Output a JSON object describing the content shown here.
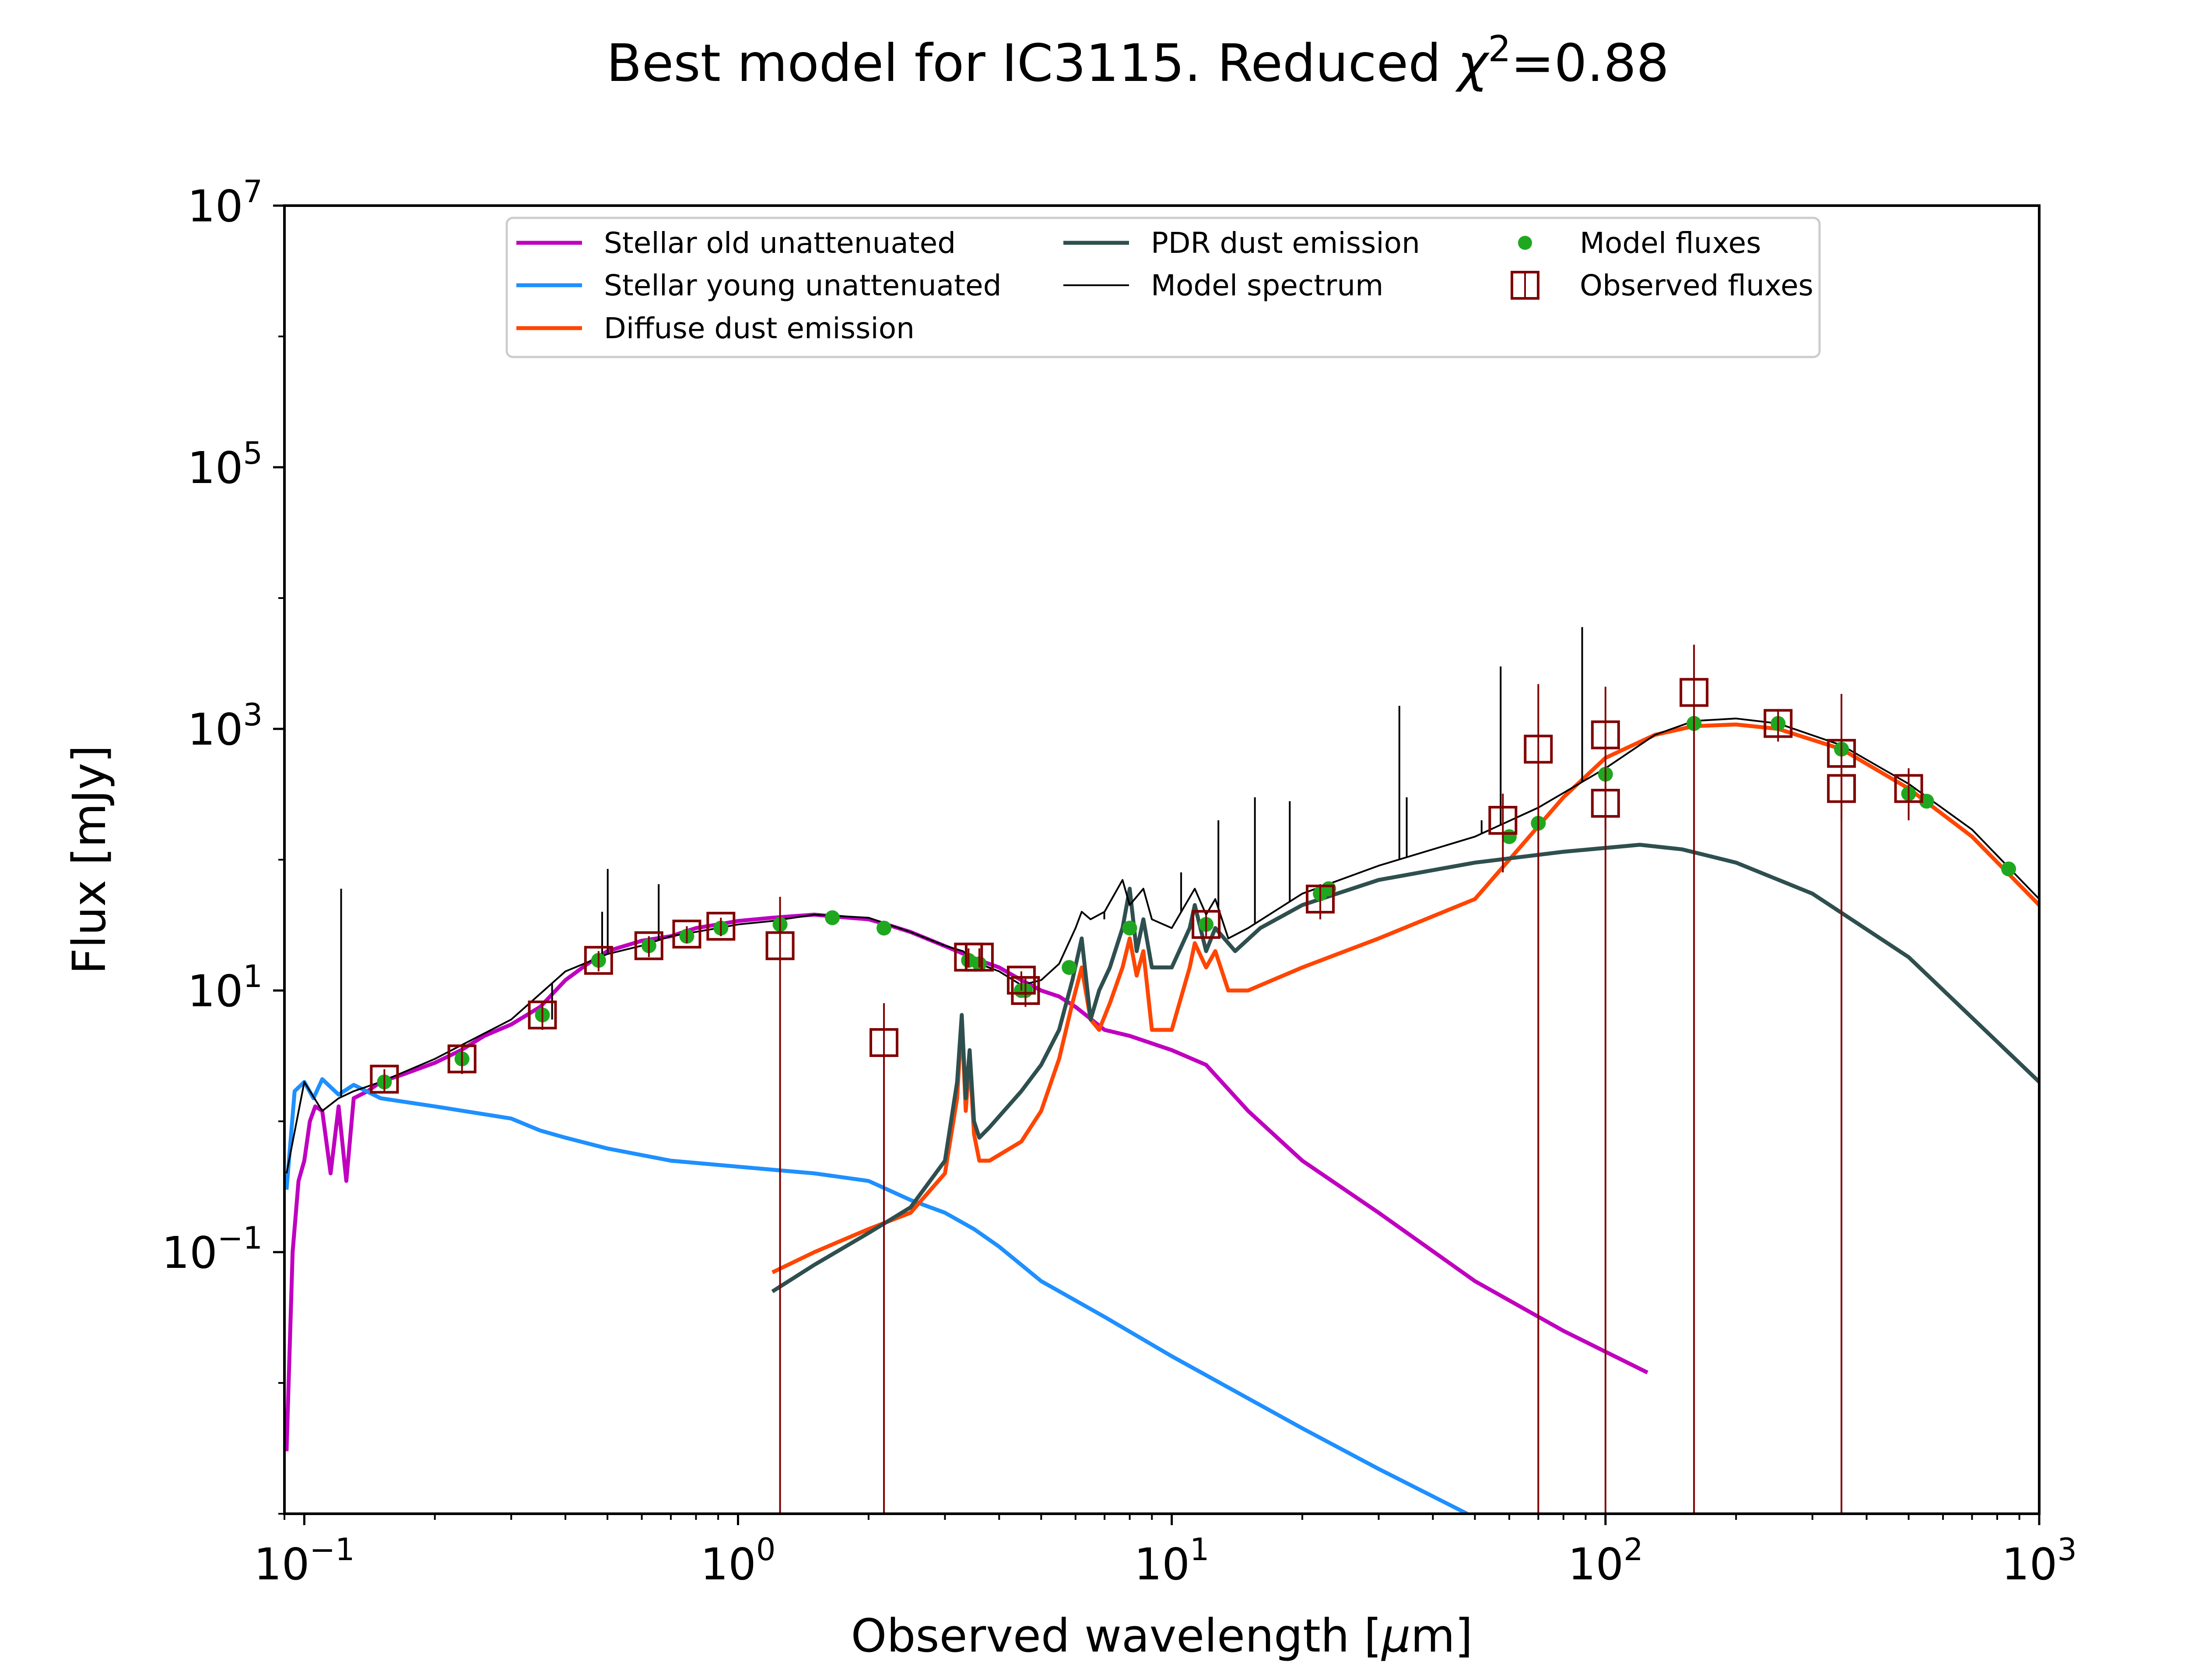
{
  "chart_data": {
    "type": "line",
    "title": "Best model for IC3115. Reduced χ²=0.88",
    "title_main": "Best model for IC3115. Reduced ",
    "title_chi": "χ",
    "title_sup": "2",
    "title_tail": "=0.88",
    "xlabel": "Observed wavelength [μm]",
    "xlabel_main": "Observed wavelength [",
    "xlabel_mu": "μ",
    "xlabel_tail": "m]",
    "ylabel": "Flux [mJy]",
    "x_scale": "log",
    "y_scale": "log",
    "xlim": [
      0.09,
      1000
    ],
    "ylim": [
      0.001,
      10000000
    ],
    "x_ticks": [
      {
        "value": 0.1,
        "base": "10",
        "exp": "−1"
      },
      {
        "value": 1,
        "base": "10",
        "exp": "0"
      },
      {
        "value": 10,
        "base": "10",
        "exp": "1"
      },
      {
        "value": 100,
        "base": "10",
        "exp": "2"
      },
      {
        "value": 1000,
        "base": "10",
        "exp": "3"
      }
    ],
    "y_ticks": [
      {
        "value": 0.1,
        "base": "10",
        "exp": "−1"
      },
      {
        "value": 10,
        "base": "10",
        "exp": "1"
      },
      {
        "value": 1000,
        "base": "10",
        "exp": "3"
      },
      {
        "value": 100000,
        "base": "10",
        "exp": "5"
      },
      {
        "value": 10000000,
        "base": "10",
        "exp": "7"
      }
    ],
    "grid": false,
    "legend_position": "top",
    "series": [
      {
        "name": "Stellar old unattenuated",
        "color": "#BF00BF",
        "kind": "line",
        "x": [
          0.091,
          0.094,
          0.097,
          0.1,
          0.103,
          0.106,
          0.11,
          0.115,
          0.12,
          0.125,
          0.13,
          0.14,
          0.15,
          0.17,
          0.2,
          0.23,
          0.26,
          0.3,
          0.35,
          0.4,
          0.45,
          0.5,
          0.6,
          0.7,
          0.8,
          0.9,
          1.0,
          1.2,
          1.5,
          1.8,
          2.0,
          2.2,
          2.5,
          2.8,
          3.2,
          3.6,
          4.0,
          4.5,
          5.0,
          5.5,
          6.0,
          7.0,
          8.0,
          10,
          12,
          15,
          20,
          30,
          50,
          80,
          125
        ],
        "y": [
          0.003,
          0.1,
          0.35,
          0.5,
          1.0,
          1.3,
          1.2,
          0.4,
          1.3,
          0.35,
          1.5,
          1.7,
          2.0,
          2.3,
          2.8,
          3.5,
          4.5,
          5.5,
          7.5,
          12,
          16,
          20,
          24,
          26,
          30,
          32,
          34,
          36,
          38,
          36,
          35,
          32,
          28,
          24,
          20,
          17,
          15,
          12,
          10,
          9,
          7.5,
          5.0,
          4.5,
          3.5,
          2.7,
          1.2,
          0.5,
          0.2,
          0.06,
          0.025,
          0.012
        ]
      },
      {
        "name": "Stellar young unattenuated",
        "color": "#1E90FF",
        "kind": "line",
        "x": [
          0.091,
          0.095,
          0.1,
          0.105,
          0.11,
          0.12,
          0.13,
          0.15,
          0.2,
          0.3,
          0.35,
          0.4,
          0.5,
          0.7,
          1.0,
          1.5,
          2.0,
          2.5,
          3.0,
          3.5,
          4.0,
          5.0,
          7.0,
          10,
          20,
          30,
          48
        ],
        "y": [
          0.3,
          1.7,
          2.0,
          1.5,
          2.1,
          1.6,
          1.9,
          1.5,
          1.3,
          1.05,
          0.85,
          0.75,
          0.62,
          0.5,
          0.45,
          0.4,
          0.35,
          0.25,
          0.2,
          0.15,
          0.11,
          0.06,
          0.032,
          0.016,
          0.0045,
          0.0022,
          0.001
        ]
      },
      {
        "name": "Diffuse dust emission",
        "color": "#FF4500",
        "kind": "line",
        "x": [
          1.2,
          1.5,
          2.0,
          2.5,
          3.0,
          3.2,
          3.28,
          3.35,
          3.42,
          3.5,
          3.6,
          3.8,
          4.5,
          5.0,
          5.5,
          5.9,
          6.2,
          6.5,
          6.8,
          7.2,
          7.7,
          8.0,
          8.3,
          8.6,
          9.0,
          10,
          11.0,
          11.3,
          12.0,
          12.6,
          13.5,
          15,
          20,
          30,
          50,
          60,
          80,
          100,
          130,
          160,
          200,
          250,
          350,
          500,
          700,
          1000
        ],
        "y": [
          0.07,
          0.1,
          0.15,
          0.2,
          0.4,
          1.5,
          6.0,
          1.2,
          3.0,
          0.8,
          0.5,
          0.5,
          0.7,
          1.2,
          3.0,
          8.0,
          15,
          6.0,
          5.0,
          8.0,
          15,
          25,
          13,
          20,
          5.0,
          5.0,
          15,
          23,
          15,
          20,
          10,
          10,
          15,
          25,
          50,
          100,
          300,
          600,
          900,
          1050,
          1080,
          1000,
          700,
          350,
          150,
          45
        ]
      },
      {
        "name": "PDR dust emission",
        "color": "#2F4F4F",
        "kind": "line",
        "x": [
          1.2,
          1.5,
          2.0,
          2.5,
          3.0,
          3.2,
          3.28,
          3.35,
          3.42,
          3.5,
          3.6,
          3.8,
          4.5,
          5.0,
          5.5,
          5.9,
          6.2,
          6.5,
          6.8,
          7.2,
          7.7,
          8.0,
          8.3,
          8.6,
          9.0,
          10,
          11.0,
          11.3,
          12.0,
          12.6,
          14,
          16,
          20,
          30,
          50,
          80,
          120,
          150,
          200,
          300,
          500,
          1000
        ],
        "y": [
          0.05,
          0.08,
          0.14,
          0.22,
          0.5,
          2.0,
          6.5,
          1.5,
          3.5,
          1.0,
          0.75,
          0.9,
          1.7,
          2.7,
          5.0,
          12,
          25,
          6.0,
          10,
          15,
          30,
          60,
          20,
          35,
          15,
          15,
          30,
          45,
          20,
          30,
          20,
          30,
          45,
          70,
          95,
          115,
          130,
          120,
          95,
          55,
          18,
          2.0
        ]
      },
      {
        "name": "Model spectrum",
        "color": "#000000",
        "kind": "line",
        "width": "thin",
        "x": [
          0.091,
          0.1,
          0.11,
          0.12,
          0.13,
          0.15,
          0.2,
          0.3,
          0.4,
          0.5,
          0.6,
          0.7,
          0.9,
          1.0,
          1.2,
          1.5,
          2.0,
          2.5,
          3.0,
          3.3,
          3.6,
          4.0,
          4.5,
          5.0,
          5.5,
          6.0,
          6.2,
          6.5,
          7.0,
          7.7,
          8.0,
          8.6,
          9.0,
          10,
          11.3,
          12,
          12.6,
          13.5,
          15,
          20,
          30,
          50,
          70,
          100,
          130,
          160,
          200,
          250,
          350,
          500,
          700,
          1000
        ],
        "y": [
          0.4,
          2.0,
          1.2,
          1.5,
          1.7,
          2.0,
          3.0,
          6.0,
          14,
          19,
          22,
          26,
          30,
          32,
          34,
          38,
          36,
          28,
          22,
          20,
          16,
          14,
          11,
          12,
          16,
          30,
          40,
          35,
          40,
          70,
          45,
          60,
          35,
          30,
          60,
          38,
          50,
          25,
          30,
          55,
          90,
          150,
          250,
          500,
          900,
          1150,
          1200,
          1100,
          750,
          380,
          170,
          50
        ]
      },
      {
        "name": "",
        "color": "#000000",
        "kind": "emission-lines",
        "x": [
          0.1216,
          0.3727,
          0.4861,
          0.5007,
          0.6563,
          6.99,
          10.51,
          12.81,
          15.55,
          18.71,
          33.48,
          34.81,
          51.81,
          57.32,
          88.36
        ],
        "y": [
          60,
          6.0,
          40,
          85,
          65,
          35,
          80,
          200,
          300,
          280,
          1500,
          300,
          200,
          3000,
          6000
        ]
      },
      {
        "name": "Model fluxes",
        "color": "#1FA81F",
        "kind": "markers",
        "marker": "circle",
        "x": [
          0.153,
          0.231,
          0.354,
          0.477,
          0.623,
          0.762,
          0.913,
          1.25,
          1.65,
          2.17,
          3.4,
          3.6,
          4.5,
          4.6,
          5.8,
          8.0,
          12,
          22,
          23,
          60,
          70,
          100,
          160,
          160,
          250,
          350,
          500,
          550,
          850
        ],
        "y": [
          2.0,
          3.0,
          6.5,
          17,
          22,
          26,
          30,
          32,
          36,
          30,
          17,
          16,
          10,
          10,
          15,
          30,
          32,
          55,
          60,
          150,
          190,
          450,
          1100,
          1100,
          1100,
          700,
          320,
          280,
          85
        ]
      },
      {
        "name": "Observed fluxes",
        "color": "#800000",
        "kind": "markers",
        "marker": "open-square",
        "x": [
          0.153,
          0.231,
          0.354,
          0.477,
          0.623,
          0.762,
          0.913,
          1.25,
          2.17,
          3.4,
          3.6,
          4.5,
          4.6,
          12,
          22,
          58,
          70,
          100,
          100,
          160,
          250,
          350,
          350,
          500
        ],
        "y": [
          2.1,
          3.0,
          6.5,
          17,
          22,
          27,
          31,
          22,
          4.0,
          18,
          18,
          12,
          10,
          32,
          50,
          200,
          700,
          900,
          270,
          1900,
          1100,
          650,
          350,
          350
        ],
        "y_err": [
          [
            0.4,
            0.4
          ],
          [
            0.7,
            0.7
          ],
          [
            1.5,
            1.5
          ],
          [
            3.0,
            3.0
          ],
          [
            4.0,
            4.0
          ],
          [
            4.0,
            4.0
          ],
          [
            5.0,
            5.0
          ],
          [
            21.999,
            30
          ],
          [
            3.999,
            4.0
          ],
          [
            3.0,
            3.0
          ],
          [
            3.0,
            3.0
          ],
          [
            2.0,
            2.0
          ],
          [
            2.5,
            2.5
          ],
          [
            6.0,
            6.0
          ],
          [
            15,
            15
          ],
          [
            120,
            120
          ],
          [
            699.999,
            1500
          ],
          [
            899.999,
            1200
          ],
          [
            100,
            100
          ],
          [
            1899.999,
            2500
          ],
          [
            300,
            300
          ],
          [
            649.999,
            1200
          ],
          [
            150,
            150
          ],
          [
            150,
            150
          ]
        ]
      }
    ]
  }
}
